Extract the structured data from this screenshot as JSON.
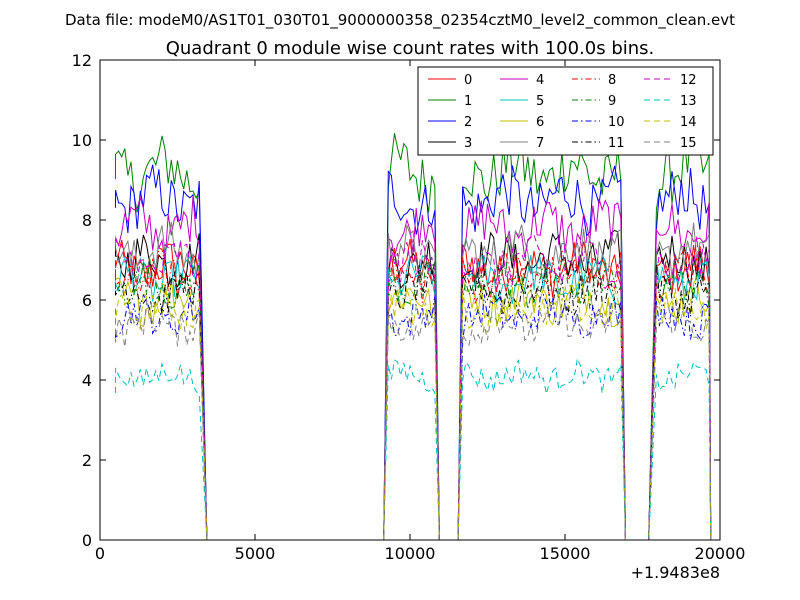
{
  "chart_data": {
    "type": "line",
    "suptitle": "Data file: modeM0/AS1T01_030T01_9000000358_02354cztM0_level2_common_clean.evt",
    "title": "Quadrant 0 module wise count rates with 100.0s bins.",
    "xlabel": "",
    "ylabel": "",
    "xlim": [
      0,
      20000
    ],
    "ylim": [
      0,
      12
    ],
    "x_offset_label": "+1.9483e8",
    "x_ticks": [
      0,
      5000,
      10000,
      15000,
      20000
    ],
    "x_tick_labels": [
      "0",
      "5000",
      "10000",
      "15000",
      "20000"
    ],
    "y_ticks": [
      0,
      2,
      4,
      6,
      8,
      10,
      12
    ],
    "y_tick_labels": [
      "0",
      "2",
      "4",
      "6",
      "8",
      "10",
      "12"
    ],
    "grid": false,
    "legend_position": "top-right",
    "segments": [
      {
        "start": 500,
        "end": 3250,
        "drop_to": 3450
      },
      {
        "start": 9300,
        "end": 10850,
        "rise_from": 9150,
        "drop_to": 10950
      },
      {
        "start": 11700,
        "end": 16850,
        "rise_from": 11550,
        "drop_to": 16950
      },
      {
        "start": 17950,
        "end": 19650,
        "rise_from": 17700,
        "drop_to": 19700
      }
    ],
    "series": [
      {
        "name": "0",
        "color": "#ff0000",
        "dash": "solid",
        "level": 6.8
      },
      {
        "name": "1",
        "color": "#008000",
        "dash": "solid",
        "level": 9.2
      },
      {
        "name": "2",
        "color": "#0000ff",
        "dash": "solid",
        "level": 8.5
      },
      {
        "name": "3",
        "color": "#000000",
        "dash": "solid",
        "level": 7.0
      },
      {
        "name": "4",
        "color": "#bf00bf",
        "dash": "solid",
        "level": 7.8
      },
      {
        "name": "5",
        "color": "#00bfbf",
        "dash": "solid",
        "level": 6.5
      },
      {
        "name": "6",
        "color": "#bfbf00",
        "dash": "solid",
        "level": 6.0
      },
      {
        "name": "7",
        "color": "#808080",
        "dash": "solid",
        "level": 7.2
      },
      {
        "name": "8",
        "color": "#ff0000",
        "dash": "dashdot",
        "level": 6.6
      },
      {
        "name": "9",
        "color": "#008000",
        "dash": "dashdot",
        "level": 6.4
      },
      {
        "name": "10",
        "color": "#0000ff",
        "dash": "dashdot",
        "level": 5.6
      },
      {
        "name": "11",
        "color": "#000000",
        "dash": "dashdot",
        "level": 6.2
      },
      {
        "name": "12",
        "color": "#bf00bf",
        "dash": "dashed",
        "level": 6.9
      },
      {
        "name": "13",
        "color": "#00bfbf",
        "dash": "dashed",
        "level": 4.1
      },
      {
        "name": "14",
        "color": "#bfbf00",
        "dash": "dashed",
        "level": 5.8
      },
      {
        "name": "15",
        "color": "#808080",
        "dash": "dashed",
        "level": 5.4
      }
    ]
  }
}
